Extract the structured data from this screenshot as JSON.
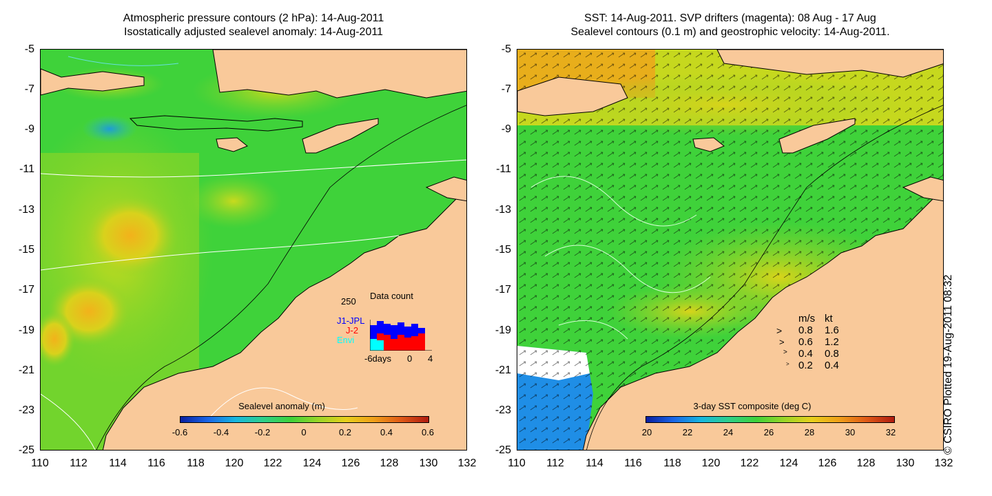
{
  "left_panel": {
    "title_line1": "Atmospheric pressure contours (2 hPa): 14-Aug-2011",
    "title_line2": "Isostatically adjusted sealevel anomaly: 14-Aug-2011",
    "colorbar": {
      "title": "Sealevel anomaly (m)",
      "ticks": [
        "-0.6",
        "-0.4",
        "-0.2",
        "0",
        "0.2",
        "0.4",
        "0.6"
      ]
    },
    "inset": {
      "title": "Data count",
      "ymax": "250",
      "legend": [
        "J1-JPL",
        "J-2",
        "Envi"
      ],
      "xlabel_left": "-6days",
      "xlabel_mid": "0",
      "xlabel_right": "4",
      "colors": {
        "j1": "#0000ff",
        "j2": "#ff0000",
        "envi": "#00ffff"
      }
    }
  },
  "right_panel": {
    "title_line1": "SST: 14-Aug-2011. SVP drifters (magenta): 08 Aug - 17 Aug",
    "title_line2": "Sealevel contours (0.1 m) and geostrophic velocity: 14-Aug-2011.",
    "colorbar": {
      "title": "3-day SST composite (deg C)",
      "ticks": [
        "20",
        "22",
        "24",
        "26",
        "28",
        "30",
        "32"
      ]
    },
    "velocity_legend": {
      "header_ms": "m/s",
      "header_kt": "kt",
      "rows": [
        {
          "ms": "0.8",
          "kt": "1.6"
        },
        {
          "ms": "0.6",
          "kt": "1.2"
        },
        {
          "ms": "0.4",
          "kt": "0.8"
        },
        {
          "ms": "0.2",
          "kt": "0.4"
        }
      ]
    }
  },
  "axes": {
    "y_ticks": [
      "-5",
      "-7",
      "-9",
      "-11",
      "-13",
      "-15",
      "-17",
      "-19",
      "-21",
      "-23",
      "-25"
    ],
    "x_ticks": [
      "110",
      "112",
      "114",
      "116",
      "118",
      "120",
      "122",
      "124",
      "126",
      "128",
      "130",
      "132"
    ]
  },
  "credit": "© CSIRO Plotted 19-Aug-2011 08:32",
  "colors": {
    "land": "#f9c99a",
    "sea_green": "#3fd23a",
    "sst_cold": "#0066ff"
  }
}
